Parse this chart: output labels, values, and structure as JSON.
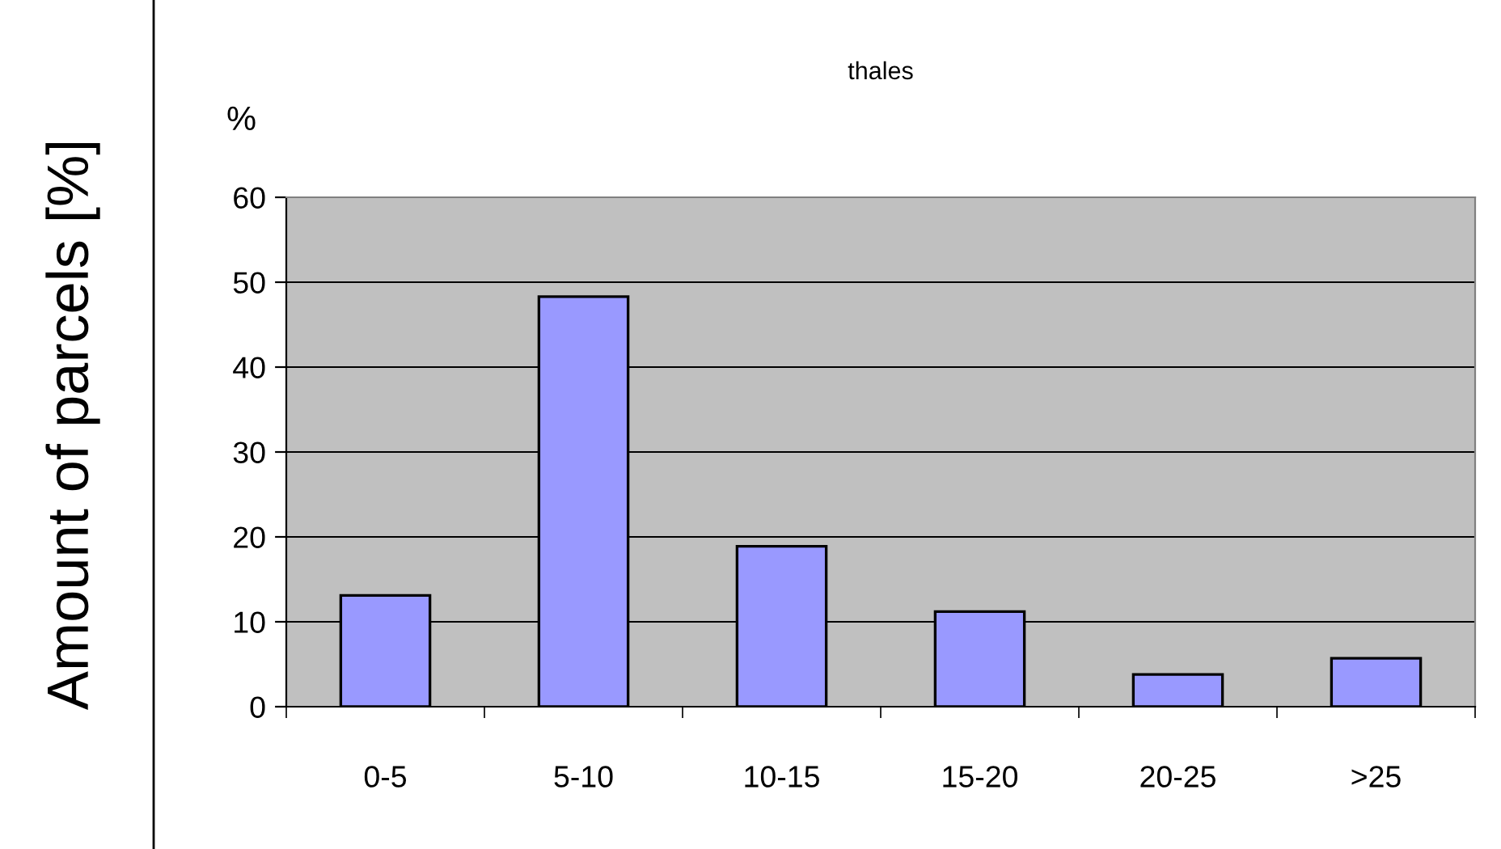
{
  "chart_data": {
    "type": "bar",
    "title": "thales",
    "ylabel": "Amount of parcels [%]",
    "annotations": [
      "%"
    ],
    "categories": [
      "0-5",
      "5-10",
      "10-15",
      "15-20",
      "20-25",
      ">25"
    ],
    "values": [
      13.1,
      48.3,
      18.9,
      11.2,
      3.8,
      5.7
    ],
    "color": "#9999ff",
    "ylim": [
      0,
      60
    ],
    "yticks": [
      0,
      10,
      20,
      30,
      40,
      50,
      60
    ],
    "grid": "y",
    "legend": false
  }
}
